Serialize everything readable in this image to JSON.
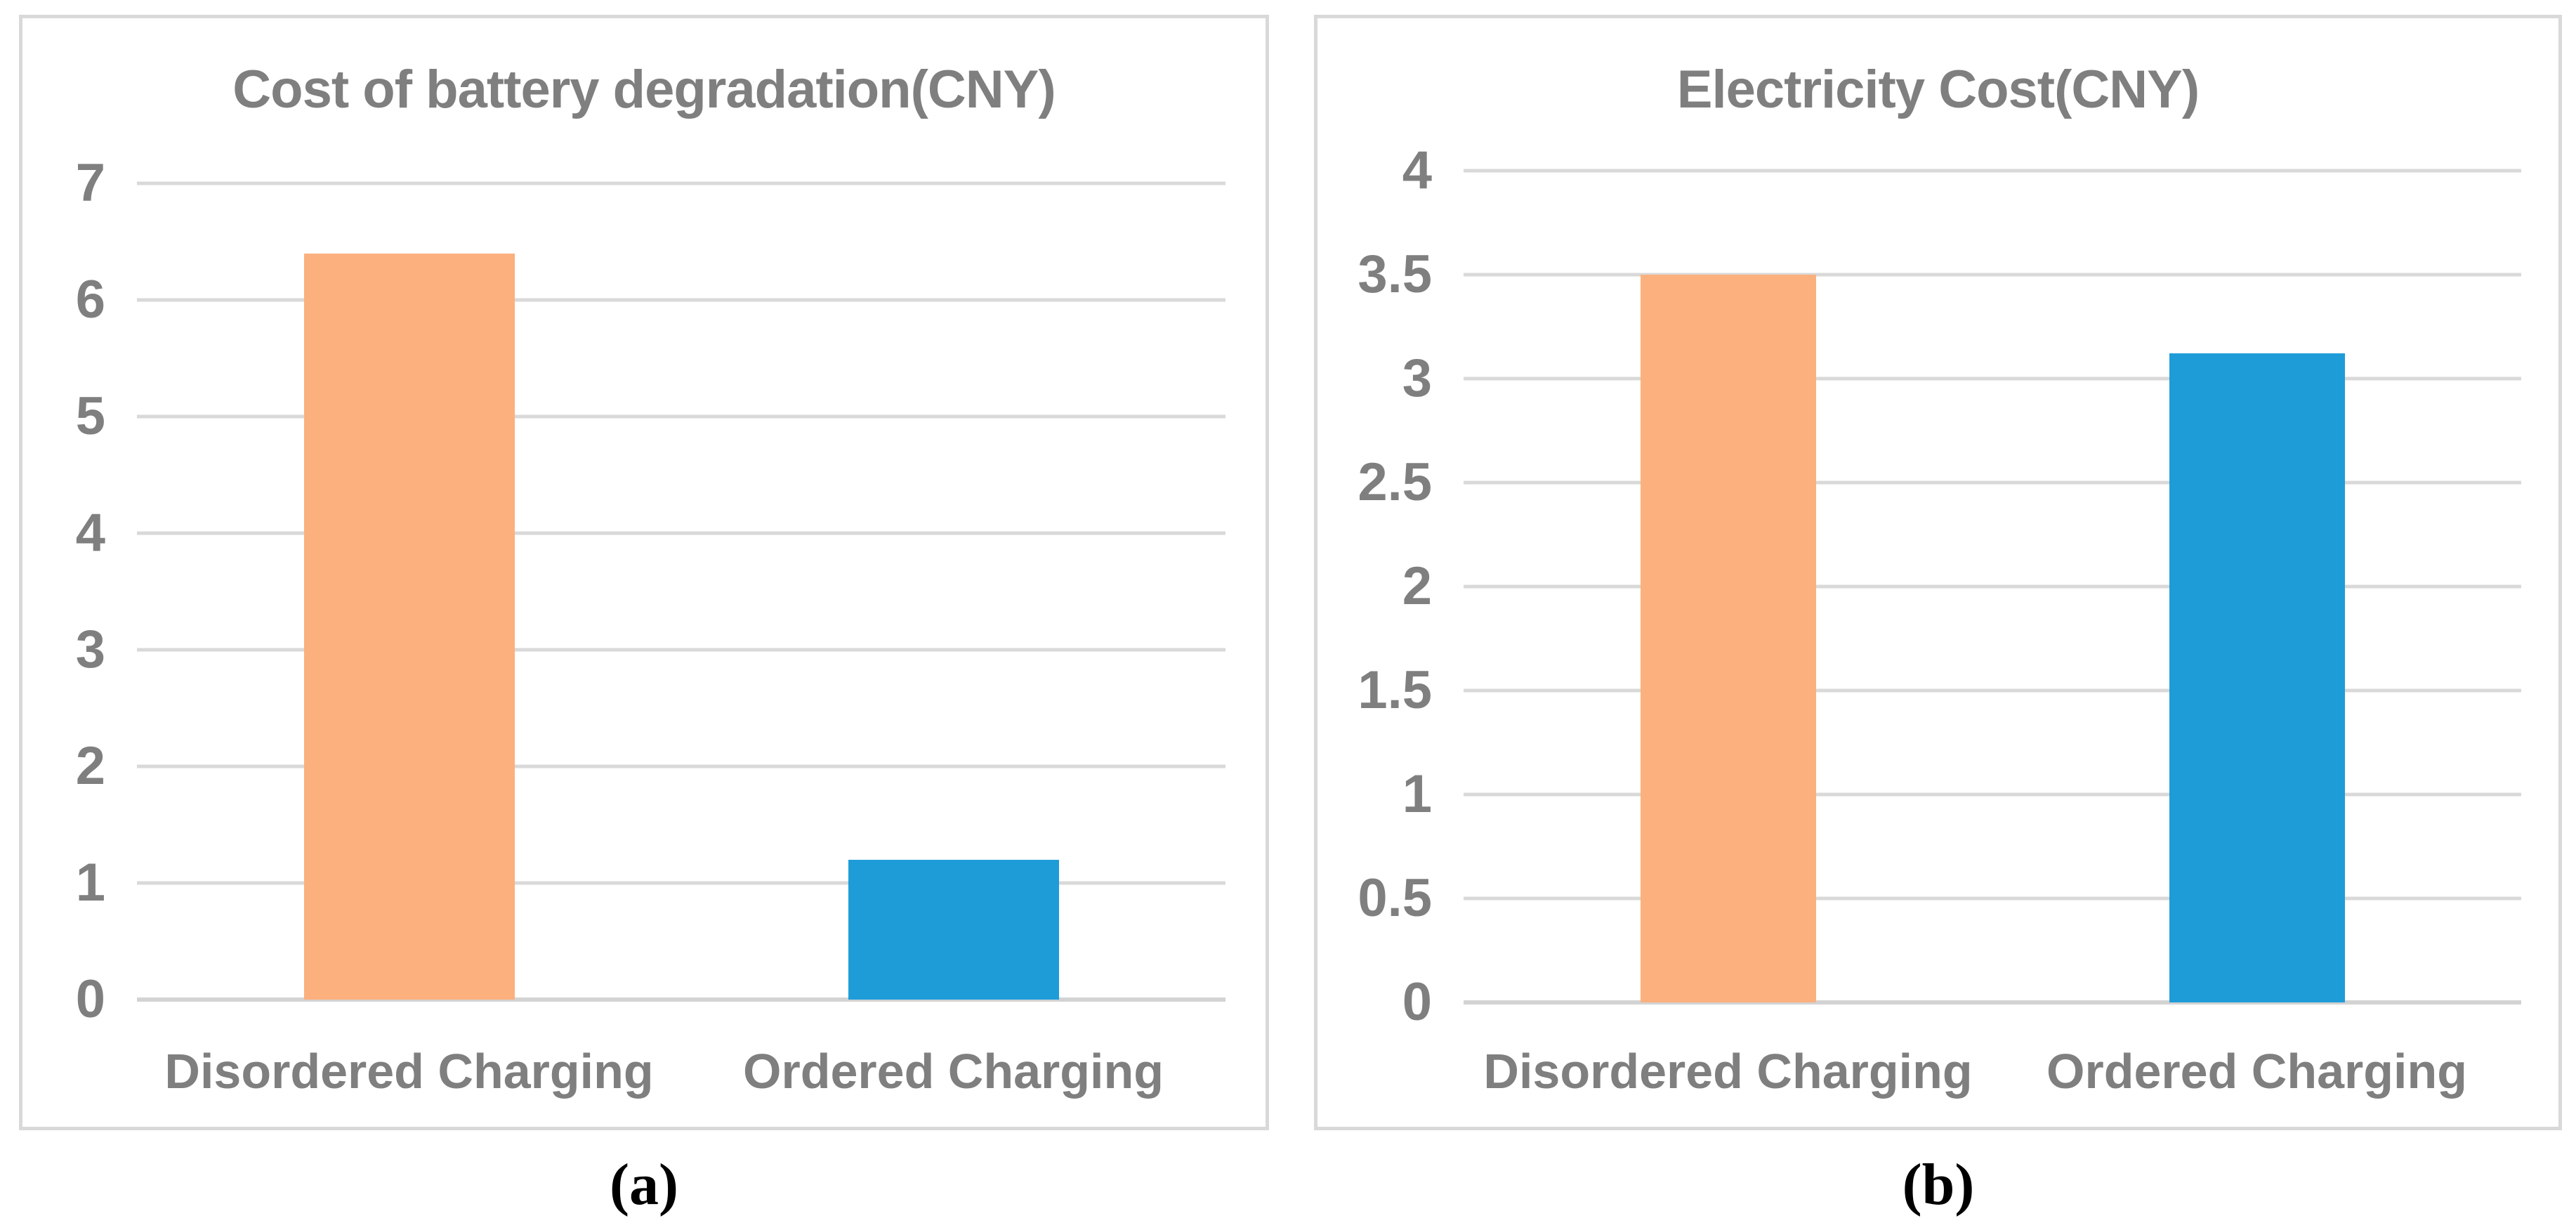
{
  "figure": {
    "description": "Two side-by-side bar chart panels comparing disordered vs ordered EV charging",
    "panel_count": 2
  },
  "colors": {
    "bar_orange": "#FBB07E",
    "bar_blue": "#1E9CD8",
    "gridline": "#D9D9D9",
    "axis_line": "#D3D3D3",
    "panel_border": "#D9D9D9",
    "chart_text": "#7F7F7F",
    "caption_text": "#000000"
  },
  "chart_data": [
    {
      "type": "bar",
      "title": "Cost of battery degradation(CNY)",
      "caption": "(a)",
      "categories": [
        "Disordered Charging",
        "Ordered Charging"
      ],
      "values": [
        6.4,
        1.2
      ],
      "bar_colors": [
        "#FBB07E",
        "#1E9CD8"
      ],
      "xlabel": "",
      "ylabel": "",
      "ylim": [
        0,
        7
      ],
      "ytick_step": 1,
      "ytick_labels": [
        "0",
        "1",
        "2",
        "3",
        "4",
        "5",
        "6",
        "7"
      ],
      "grid": true,
      "legend": "none"
    },
    {
      "type": "bar",
      "title": "Electricity Cost(CNY)",
      "caption": "(b)",
      "categories": [
        "Disordered Charging",
        "Ordered Charging"
      ],
      "values": [
        3.5,
        3.12
      ],
      "bar_colors": [
        "#FBB07E",
        "#1E9CD8"
      ],
      "xlabel": "",
      "ylabel": "",
      "ylim": [
        0,
        4
      ],
      "ytick_step": 0.5,
      "ytick_labels": [
        "0",
        "0.5",
        "1",
        "1.5",
        "2",
        "2.5",
        "3",
        "3.5",
        "4"
      ],
      "grid": true,
      "legend": "none"
    }
  ]
}
